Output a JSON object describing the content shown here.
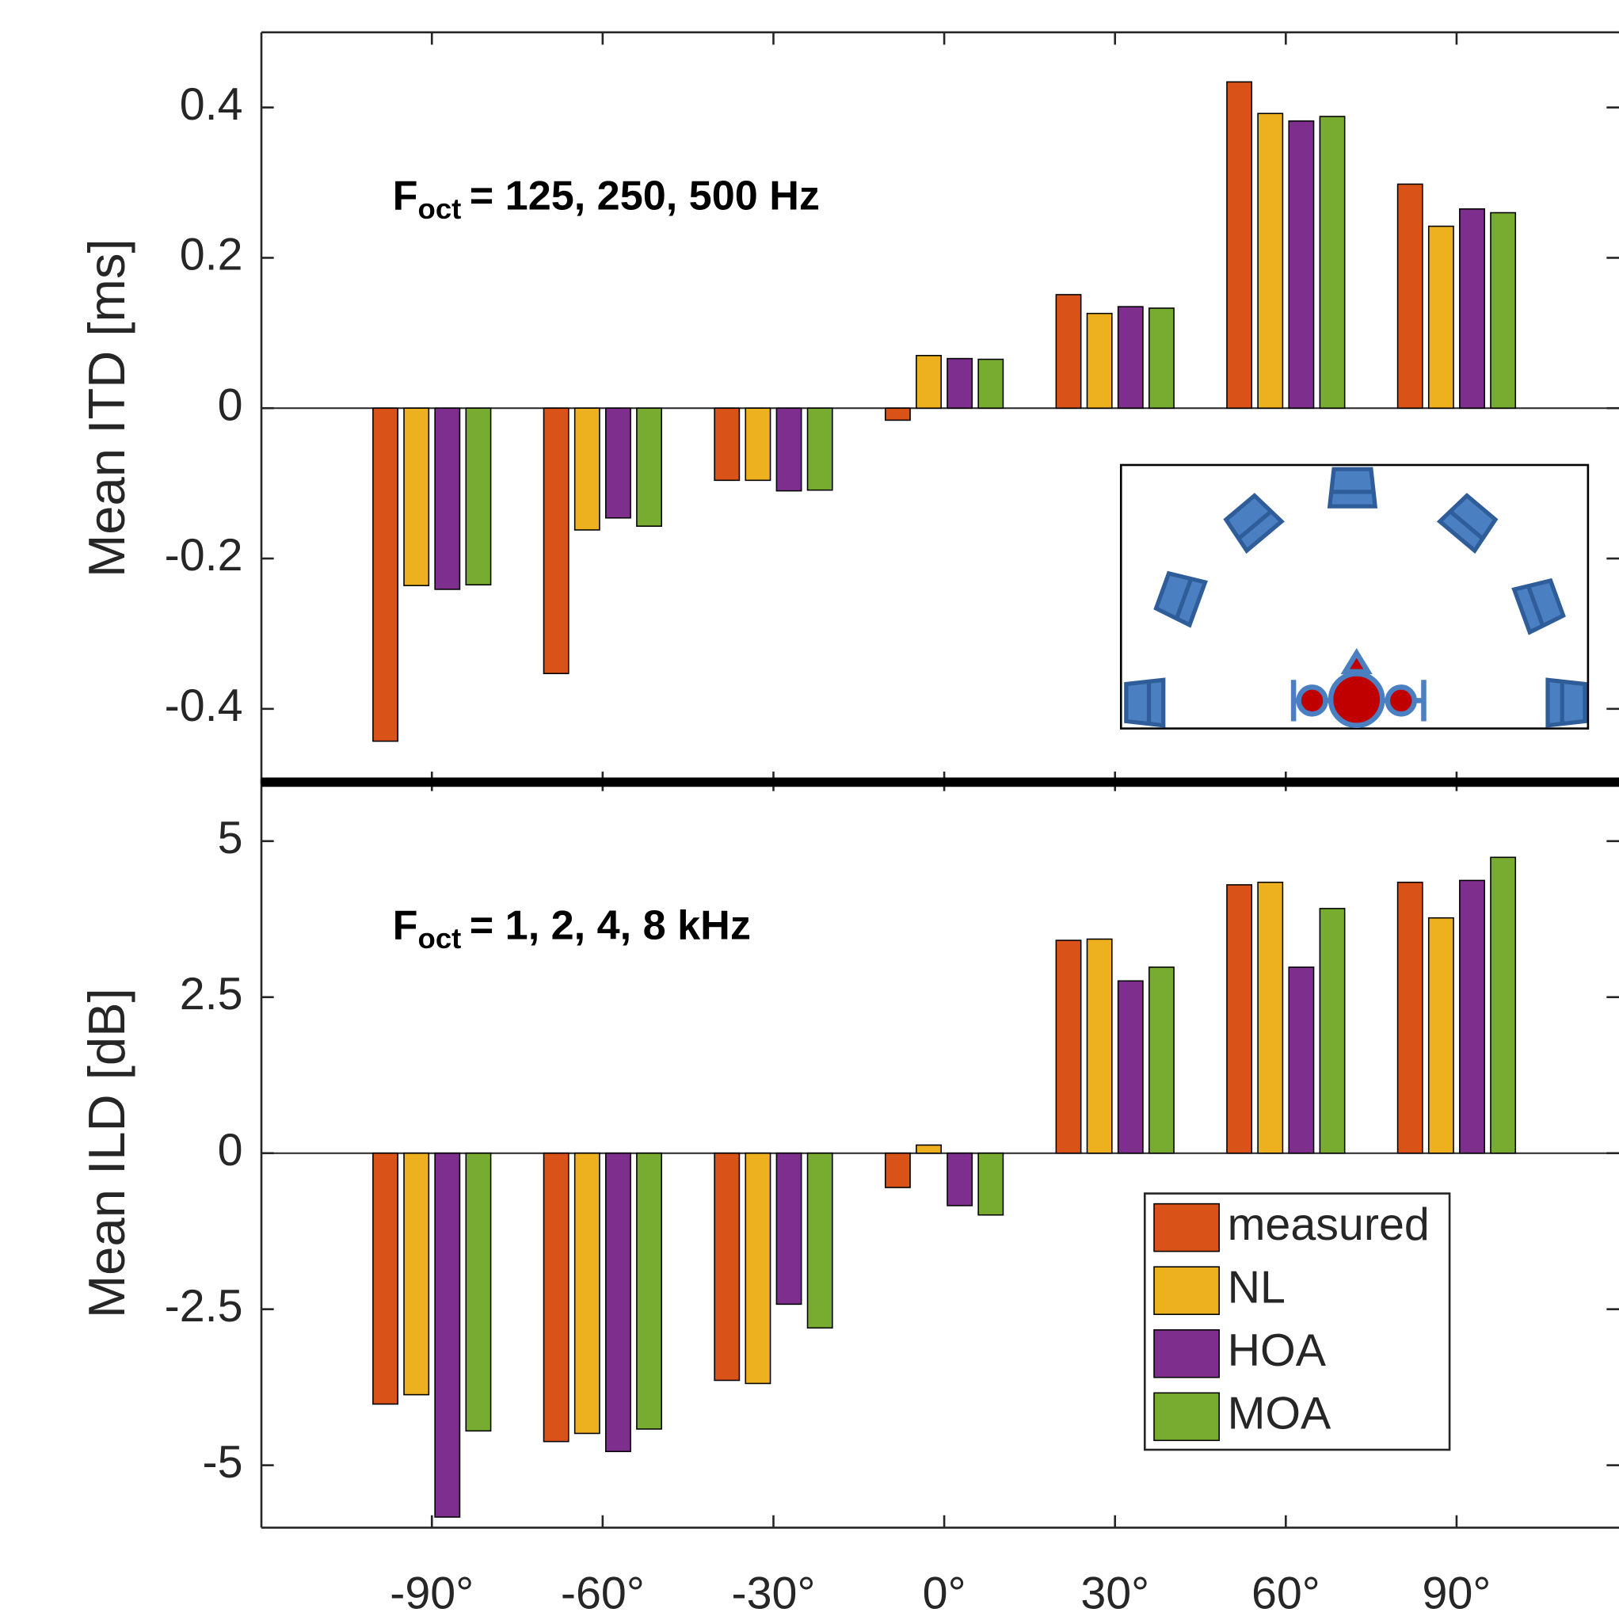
{
  "chart_data": [
    {
      "type": "bar",
      "ylabel": "Mean ITD [ms]",
      "annotation": {
        "main": "F",
        "sub": "oct",
        "rest": "= 125, 250, 500 Hz"
      },
      "ylim": [
        -0.5,
        0.5
      ],
      "yticks": [
        -0.4,
        -0.2,
        0,
        0.2,
        0.4
      ],
      "grid": false,
      "series": [
        {
          "color": "#d95319",
          "values": [
            -0.443,
            -0.353,
            -0.096,
            -0.016,
            0.151,
            0.434,
            0.298
          ]
        },
        {
          "color": "#edb120",
          "values": [
            -0.236,
            -0.162,
            -0.096,
            0.07,
            0.126,
            0.392,
            0.242
          ]
        },
        {
          "color": "#7e2f8e",
          "values": [
            -0.241,
            -0.146,
            -0.11,
            0.066,
            0.135,
            0.382,
            0.265
          ]
        },
        {
          "color": "#77ac30",
          "values": [
            -0.235,
            -0.157,
            -0.109,
            0.065,
            0.133,
            0.388,
            0.26
          ]
        }
      ]
    },
    {
      "type": "bar",
      "ylabel": "Mean ILD [dB]",
      "annotation": {
        "main": "F",
        "sub": "oct",
        "rest": "= 1, 2, 4, 8 kHz"
      },
      "categories": [
        "-90°",
        "-60°",
        "-30°",
        "0°",
        "30°",
        "60°",
        "90°"
      ],
      "ylim": [
        -6,
        6
      ],
      "yticks": [
        -5,
        -2.5,
        0,
        2.5,
        5
      ],
      "grid": false,
      "legend": "lower right",
      "series": [
        {
          "name": "measured",
          "color": "#d95319",
          "values": [
            -4.02,
            -4.62,
            -3.64,
            -0.55,
            3.41,
            4.3,
            4.34
          ]
        },
        {
          "name": "NL",
          "color": "#edb120",
          "values": [
            -3.87,
            -4.49,
            -3.69,
            0.13,
            3.43,
            4.34,
            3.77
          ]
        },
        {
          "name": "HOA",
          "color": "#7e2f8e",
          "values": [
            -5.83,
            -4.78,
            -2.42,
            -0.84,
            2.76,
            2.98,
            4.37
          ]
        },
        {
          "name": "MOA",
          "color": "#77ac30",
          "values": [
            -4.45,
            -4.42,
            -2.8,
            -0.99,
            2.98,
            3.92,
            4.74
          ]
        }
      ]
    }
  ]
}
